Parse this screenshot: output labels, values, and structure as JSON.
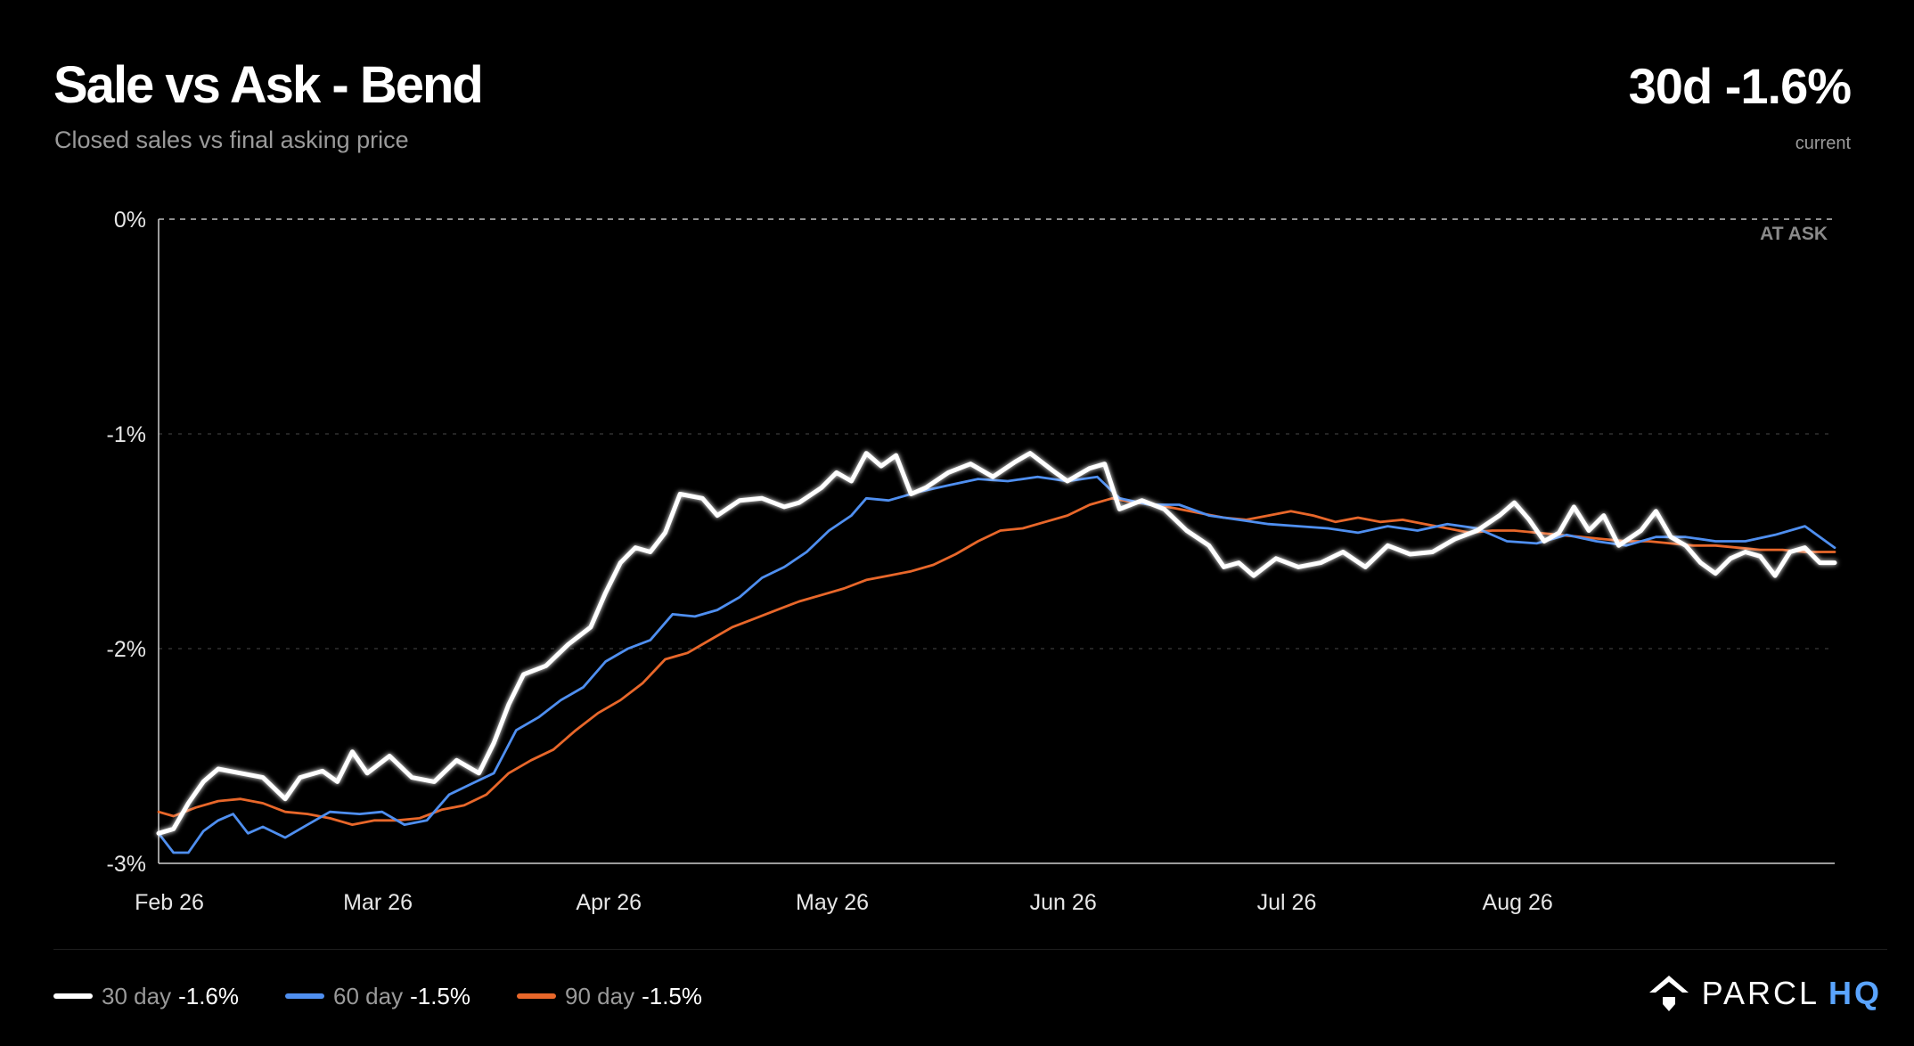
{
  "header": {
    "title": "Sale vs Ask - Bend",
    "subtitle": "Closed sales vs final asking price",
    "headline_value": "30d -1.6%",
    "headline_caption": "current"
  },
  "colors": {
    "background": "#000000",
    "series_30": "#ffffff",
    "series_60": "#4f8ff0",
    "series_90": "#e8672a",
    "accent_brand": "#5aa4ff"
  },
  "legend": [
    {
      "label": "30 day",
      "value": "-1.6%",
      "color": "#ffffff"
    },
    {
      "label": "60 day",
      "value": "-1.5%",
      "color": "#4f8ff0"
    },
    {
      "label": "90 day",
      "value": "-1.5%",
      "color": "#e8672a"
    }
  ],
  "brand": {
    "name_a": "PARCL",
    "name_b": "HQ",
    "logo_icon": "parcl-house-icon"
  },
  "chart_data": {
    "type": "line",
    "title": "Sale vs Ask - Bend",
    "subtitle": "Closed sales vs final asking price",
    "y_ticks": [
      "0%",
      "-1%",
      "-2%",
      "-3%"
    ],
    "x_ticks": [
      "Feb 26",
      "Mar 26",
      "Apr 26",
      "May 26",
      "Jun 26",
      "Jul 26",
      "Aug 26"
    ],
    "ylim": [
      -3,
      0
    ],
    "annotation": "AT ASK",
    "grid": true,
    "legend_position": "bottom-left",
    "series": [
      {
        "name": "30 day",
        "points": [
          [
            "2026-02-01",
            -2.86
          ],
          [
            "2026-02-03",
            -2.84
          ],
          [
            "2026-02-05",
            -2.72
          ],
          [
            "2026-02-07",
            -2.62
          ],
          [
            "2026-02-09",
            -2.56
          ],
          [
            "2026-02-12",
            -2.58
          ],
          [
            "2026-02-15",
            -2.6
          ],
          [
            "2026-02-18",
            -2.7
          ],
          [
            "2026-02-20",
            -2.6
          ],
          [
            "2026-02-23",
            -2.57
          ],
          [
            "2026-02-25",
            -2.62
          ],
          [
            "2026-02-27",
            -2.48
          ],
          [
            "2026-03-01",
            -2.58
          ],
          [
            "2026-03-04",
            -2.5
          ],
          [
            "2026-03-07",
            -2.6
          ],
          [
            "2026-03-10",
            -2.62
          ],
          [
            "2026-03-13",
            -2.52
          ],
          [
            "2026-03-16",
            -2.58
          ],
          [
            "2026-03-18",
            -2.44
          ],
          [
            "2026-03-20",
            -2.26
          ],
          [
            "2026-03-22",
            -2.12
          ],
          [
            "2026-03-25",
            -2.08
          ],
          [
            "2026-03-28",
            -1.98
          ],
          [
            "2026-03-31",
            -1.9
          ],
          [
            "2026-04-02",
            -1.74
          ],
          [
            "2026-04-04",
            -1.6
          ],
          [
            "2026-04-06",
            -1.53
          ],
          [
            "2026-04-08",
            -1.55
          ],
          [
            "2026-04-10",
            -1.46
          ],
          [
            "2026-04-12",
            -1.28
          ],
          [
            "2026-04-15",
            -1.3
          ],
          [
            "2026-04-17",
            -1.38
          ],
          [
            "2026-04-20",
            -1.31
          ],
          [
            "2026-04-23",
            -1.3
          ],
          [
            "2026-04-26",
            -1.34
          ],
          [
            "2026-04-28",
            -1.32
          ],
          [
            "2026-05-01",
            -1.25
          ],
          [
            "2026-05-03",
            -1.18
          ],
          [
            "2026-05-05",
            -1.22
          ],
          [
            "2026-05-07",
            -1.09
          ],
          [
            "2026-05-09",
            -1.15
          ],
          [
            "2026-05-11",
            -1.1
          ],
          [
            "2026-05-13",
            -1.28
          ],
          [
            "2026-05-15",
            -1.25
          ],
          [
            "2026-05-18",
            -1.18
          ],
          [
            "2026-05-21",
            -1.14
          ],
          [
            "2026-05-24",
            -1.2
          ],
          [
            "2026-05-27",
            -1.13
          ],
          [
            "2026-05-29",
            -1.09
          ],
          [
            "2026-06-01",
            -1.17
          ],
          [
            "2026-06-03",
            -1.22
          ],
          [
            "2026-06-06",
            -1.16
          ],
          [
            "2026-06-08",
            -1.14
          ],
          [
            "2026-06-10",
            -1.35
          ],
          [
            "2026-06-13",
            -1.31
          ],
          [
            "2026-06-16",
            -1.35
          ],
          [
            "2026-06-19",
            -1.45
          ],
          [
            "2026-06-22",
            -1.52
          ],
          [
            "2026-06-24",
            -1.62
          ],
          [
            "2026-06-26",
            -1.6
          ],
          [
            "2026-06-28",
            -1.66
          ],
          [
            "2026-07-01",
            -1.58
          ],
          [
            "2026-07-04",
            -1.62
          ],
          [
            "2026-07-07",
            -1.6
          ],
          [
            "2026-07-10",
            -1.55
          ],
          [
            "2026-07-13",
            -1.62
          ],
          [
            "2026-07-16",
            -1.52
          ],
          [
            "2026-07-19",
            -1.56
          ],
          [
            "2026-07-22",
            -1.55
          ],
          [
            "2026-07-25",
            -1.49
          ],
          [
            "2026-07-28",
            -1.45
          ],
          [
            "2026-07-31",
            -1.38
          ],
          [
            "2026-08-02",
            -1.32
          ],
          [
            "2026-08-04",
            -1.4
          ],
          [
            "2026-08-06",
            -1.5
          ],
          [
            "2026-08-08",
            -1.46
          ],
          [
            "2026-08-10",
            -1.34
          ],
          [
            "2026-08-12",
            -1.45
          ],
          [
            "2026-08-14",
            -1.38
          ],
          [
            "2026-08-16",
            -1.52
          ],
          [
            "2026-08-19",
            -1.45
          ],
          [
            "2026-08-21",
            -1.36
          ],
          [
            "2026-08-23",
            -1.48
          ],
          [
            "2026-08-25",
            -1.52
          ],
          [
            "2026-08-27",
            -1.6
          ],
          [
            "2026-08-29",
            -1.65
          ],
          [
            "2026-08-31",
            -1.58
          ],
          [
            "2026-09-02",
            -1.55
          ],
          [
            "2026-09-04",
            -1.57
          ],
          [
            "2026-09-06",
            -1.66
          ],
          [
            "2026-09-08",
            -1.55
          ],
          [
            "2026-09-10",
            -1.53
          ],
          [
            "2026-09-12",
            -1.6
          ],
          [
            "2026-09-14",
            -1.6
          ]
        ]
      },
      {
        "name": "60 day",
        "points": [
          [
            "2026-02-01",
            -2.86
          ],
          [
            "2026-02-03",
            -2.95
          ],
          [
            "2026-02-05",
            -2.95
          ],
          [
            "2026-02-07",
            -2.85
          ],
          [
            "2026-02-09",
            -2.8
          ],
          [
            "2026-02-11",
            -2.77
          ],
          [
            "2026-02-13",
            -2.86
          ],
          [
            "2026-02-15",
            -2.83
          ],
          [
            "2026-02-18",
            -2.88
          ],
          [
            "2026-02-21",
            -2.82
          ],
          [
            "2026-02-24",
            -2.76
          ],
          [
            "2026-02-28",
            -2.77
          ],
          [
            "2026-03-03",
            -2.76
          ],
          [
            "2026-03-06",
            -2.82
          ],
          [
            "2026-03-09",
            -2.8
          ],
          [
            "2026-03-12",
            -2.68
          ],
          [
            "2026-03-15",
            -2.63
          ],
          [
            "2026-03-18",
            -2.58
          ],
          [
            "2026-03-21",
            -2.38
          ],
          [
            "2026-03-24",
            -2.32
          ],
          [
            "2026-03-27",
            -2.24
          ],
          [
            "2026-03-30",
            -2.18
          ],
          [
            "2026-04-02",
            -2.06
          ],
          [
            "2026-04-05",
            -2.0
          ],
          [
            "2026-04-08",
            -1.96
          ],
          [
            "2026-04-11",
            -1.84
          ],
          [
            "2026-04-14",
            -1.85
          ],
          [
            "2026-04-17",
            -1.82
          ],
          [
            "2026-04-20",
            -1.76
          ],
          [
            "2026-04-23",
            -1.67
          ],
          [
            "2026-04-26",
            -1.62
          ],
          [
            "2026-04-29",
            -1.55
          ],
          [
            "2026-05-02",
            -1.45
          ],
          [
            "2026-05-05",
            -1.38
          ],
          [
            "2026-05-07",
            -1.3
          ],
          [
            "2026-05-10",
            -1.31
          ],
          [
            "2026-05-14",
            -1.27
          ],
          [
            "2026-05-18",
            -1.24
          ],
          [
            "2026-05-22",
            -1.21
          ],
          [
            "2026-05-26",
            -1.22
          ],
          [
            "2026-05-30",
            -1.2
          ],
          [
            "2026-06-03",
            -1.22
          ],
          [
            "2026-06-07",
            -1.2
          ],
          [
            "2026-06-10",
            -1.3
          ],
          [
            "2026-06-14",
            -1.33
          ],
          [
            "2026-06-18",
            -1.33
          ],
          [
            "2026-06-22",
            -1.38
          ],
          [
            "2026-06-26",
            -1.4
          ],
          [
            "2026-06-30",
            -1.42
          ],
          [
            "2026-07-04",
            -1.43
          ],
          [
            "2026-07-08",
            -1.44
          ],
          [
            "2026-07-12",
            -1.46
          ],
          [
            "2026-07-16",
            -1.43
          ],
          [
            "2026-07-20",
            -1.45
          ],
          [
            "2026-07-24",
            -1.42
          ],
          [
            "2026-07-28",
            -1.44
          ],
          [
            "2026-08-01",
            -1.5
          ],
          [
            "2026-08-05",
            -1.51
          ],
          [
            "2026-08-09",
            -1.47
          ],
          [
            "2026-08-13",
            -1.5
          ],
          [
            "2026-08-17",
            -1.52
          ],
          [
            "2026-08-21",
            -1.48
          ],
          [
            "2026-08-25",
            -1.48
          ],
          [
            "2026-08-29",
            -1.5
          ],
          [
            "2026-09-02",
            -1.5
          ],
          [
            "2026-09-06",
            -1.47
          ],
          [
            "2026-09-10",
            -1.43
          ],
          [
            "2026-09-14",
            -1.53
          ]
        ]
      },
      {
        "name": "90 day",
        "points": [
          [
            "2026-02-01",
            -2.76
          ],
          [
            "2026-02-03",
            -2.78
          ],
          [
            "2026-02-06",
            -2.74
          ],
          [
            "2026-02-09",
            -2.71
          ],
          [
            "2026-02-12",
            -2.7
          ],
          [
            "2026-02-15",
            -2.72
          ],
          [
            "2026-02-18",
            -2.76
          ],
          [
            "2026-02-21",
            -2.77
          ],
          [
            "2026-02-24",
            -2.79
          ],
          [
            "2026-02-27",
            -2.82
          ],
          [
            "2026-03-02",
            -2.8
          ],
          [
            "2026-03-05",
            -2.8
          ],
          [
            "2026-03-08",
            -2.79
          ],
          [
            "2026-03-11",
            -2.75
          ],
          [
            "2026-03-14",
            -2.73
          ],
          [
            "2026-03-17",
            -2.68
          ],
          [
            "2026-03-20",
            -2.58
          ],
          [
            "2026-03-23",
            -2.52
          ],
          [
            "2026-03-26",
            -2.47
          ],
          [
            "2026-03-29",
            -2.38
          ],
          [
            "2026-04-01",
            -2.3
          ],
          [
            "2026-04-04",
            -2.24
          ],
          [
            "2026-04-07",
            -2.16
          ],
          [
            "2026-04-10",
            -2.05
          ],
          [
            "2026-04-13",
            -2.02
          ],
          [
            "2026-04-16",
            -1.96
          ],
          [
            "2026-04-19",
            -1.9
          ],
          [
            "2026-04-22",
            -1.86
          ],
          [
            "2026-04-25",
            -1.82
          ],
          [
            "2026-04-28",
            -1.78
          ],
          [
            "2026-05-01",
            -1.75
          ],
          [
            "2026-05-04",
            -1.72
          ],
          [
            "2026-05-07",
            -1.68
          ],
          [
            "2026-05-10",
            -1.66
          ],
          [
            "2026-05-13",
            -1.64
          ],
          [
            "2026-05-16",
            -1.61
          ],
          [
            "2026-05-19",
            -1.56
          ],
          [
            "2026-05-22",
            -1.5
          ],
          [
            "2026-05-25",
            -1.45
          ],
          [
            "2026-05-28",
            -1.44
          ],
          [
            "2026-05-31",
            -1.41
          ],
          [
            "2026-06-03",
            -1.38
          ],
          [
            "2026-06-06",
            -1.33
          ],
          [
            "2026-06-09",
            -1.3
          ],
          [
            "2026-06-12",
            -1.32
          ],
          [
            "2026-06-15",
            -1.33
          ],
          [
            "2026-06-18",
            -1.35
          ],
          [
            "2026-06-21",
            -1.37
          ],
          [
            "2026-06-24",
            -1.39
          ],
          [
            "2026-06-27",
            -1.4
          ],
          [
            "2026-06-30",
            -1.38
          ],
          [
            "2026-07-03",
            -1.36
          ],
          [
            "2026-07-06",
            -1.38
          ],
          [
            "2026-07-09",
            -1.41
          ],
          [
            "2026-07-12",
            -1.39
          ],
          [
            "2026-07-15",
            -1.41
          ],
          [
            "2026-07-18",
            -1.4
          ],
          [
            "2026-07-21",
            -1.42
          ],
          [
            "2026-07-24",
            -1.44
          ],
          [
            "2026-07-27",
            -1.46
          ],
          [
            "2026-07-30",
            -1.45
          ],
          [
            "2026-08-02",
            -1.45
          ],
          [
            "2026-08-05",
            -1.46
          ],
          [
            "2026-08-08",
            -1.47
          ],
          [
            "2026-08-11",
            -1.48
          ],
          [
            "2026-08-14",
            -1.49
          ],
          [
            "2026-08-17",
            -1.5
          ],
          [
            "2026-08-20",
            -1.5
          ],
          [
            "2026-08-23",
            -1.51
          ],
          [
            "2026-08-26",
            -1.52
          ],
          [
            "2026-08-29",
            -1.52
          ],
          [
            "2026-09-01",
            -1.53
          ],
          [
            "2026-09-04",
            -1.54
          ],
          [
            "2026-09-07",
            -1.54
          ],
          [
            "2026-09-10",
            -1.55
          ],
          [
            "2026-09-14",
            -1.55
          ]
        ]
      }
    ]
  }
}
